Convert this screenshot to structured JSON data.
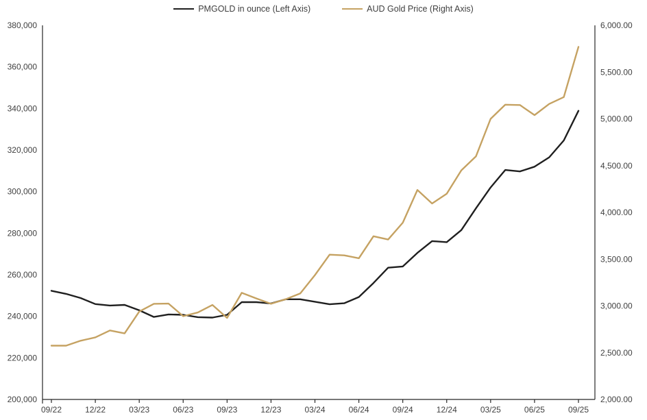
{
  "chart_data": {
    "type": "line",
    "title": "",
    "grid": false,
    "legend_position": "top",
    "categories": [
      "09/22",
      "10/22",
      "11/22",
      "12/22",
      "01/23",
      "02/23",
      "03/23",
      "04/23",
      "05/23",
      "06/23",
      "07/23",
      "08/23",
      "09/23",
      "10/23",
      "11/23",
      "12/23",
      "01/24",
      "02/24",
      "03/24",
      "04/24",
      "05/24",
      "06/24",
      "07/24",
      "08/24",
      "09/24",
      "10/24",
      "11/24",
      "12/24",
      "01/25",
      "02/25",
      "03/25",
      "04/25",
      "05/25",
      "06/25",
      "07/25",
      "08/25",
      "09/25"
    ],
    "x_tick_labels": [
      "09/22",
      "12/22",
      "03/23",
      "06/23",
      "09/23",
      "12/23",
      "03/24",
      "06/24",
      "09/24",
      "12/24",
      "03/25",
      "06/25",
      "09/25"
    ],
    "x_tick_every": 3,
    "series": [
      {
        "name": "PMGOLD in ounce (Left Axis)",
        "axis": "left",
        "color": "#1f1f1f",
        "values": [
          252300,
          250800,
          248800,
          245900,
          245200,
          245500,
          242900,
          239700,
          240900,
          240700,
          239600,
          239400,
          240700,
          246800,
          246800,
          246200,
          248200,
          248200,
          247000,
          245800,
          246300,
          249300,
          256000,
          263400,
          264000,
          270500,
          276200,
          275700,
          281500,
          292000,
          302000,
          310400,
          309700,
          312000,
          316500,
          324600,
          338900
        ]
      },
      {
        "name": "AUD Gold Price (Right Axis)",
        "axis": "right",
        "color": "#c5a262",
        "values": [
          2575,
          2575,
          2628,
          2664,
          2738,
          2706,
          2940,
          3023,
          3025,
          2890,
          2930,
          3010,
          2872,
          3140,
          3080,
          3023,
          3072,
          3133,
          3330,
          3548,
          3541,
          3510,
          3745,
          3710,
          3890,
          4240,
          4095,
          4200,
          4450,
          4600,
          5000,
          5152,
          5148,
          5040,
          5160,
          5233,
          5770
        ]
      }
    ],
    "left_axis": {
      "min": 200000,
      "max": 380000,
      "step": 20000,
      "format": "integer"
    },
    "right_axis": {
      "min": 2000,
      "max": 6000,
      "step": 500,
      "format": "decimal2"
    },
    "axis_text_color": "#404040",
    "axis_line_color": "#262626"
  }
}
